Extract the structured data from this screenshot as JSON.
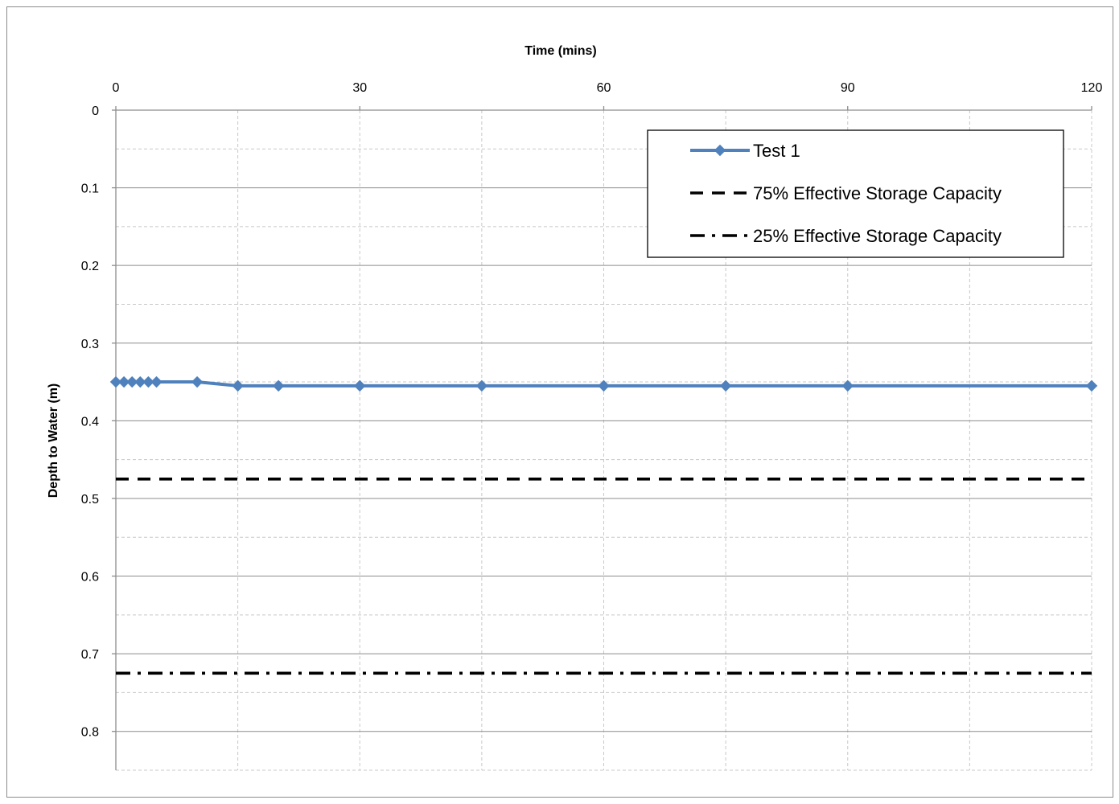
{
  "chart_data": {
    "type": "line",
    "title": "",
    "xlabel": "Time (mins)",
    "ylabel": "Depth to Water (m)",
    "xlim": [
      0,
      120
    ],
    "ylim": [
      0,
      0.85
    ],
    "y_axis_reversed": true,
    "x_axis_position": "top",
    "x_ticks": [
      "0",
      "30",
      "60",
      "90",
      "120"
    ],
    "y_ticks": [
      "0",
      "0.1",
      "0.2",
      "0.3",
      "0.4",
      "0.5",
      "0.6",
      "0.7",
      "0.8"
    ],
    "grid": true,
    "legend_position": "top-right",
    "series": [
      {
        "name": "Test 1",
        "style": "solid-diamond-markers",
        "color": "#4f81bd",
        "x": [
          0,
          1,
          2,
          3,
          4,
          5,
          10,
          15,
          20,
          30,
          45,
          60,
          75,
          90,
          120
        ],
        "y": [
          0.35,
          0.35,
          0.35,
          0.35,
          0.35,
          0.35,
          0.35,
          0.355,
          0.355,
          0.355,
          0.355,
          0.355,
          0.355,
          0.355,
          0.355
        ]
      },
      {
        "name": "75% Effective Storage Capacity",
        "style": "dashed",
        "color": "#000000",
        "x": [
          0,
          120
        ],
        "y": [
          0.475,
          0.475
        ]
      },
      {
        "name": "25% Effective Storage Capacity",
        "style": "dash-dot",
        "color": "#000000",
        "x": [
          0,
          120
        ],
        "y": [
          0.725,
          0.725
        ]
      }
    ]
  }
}
